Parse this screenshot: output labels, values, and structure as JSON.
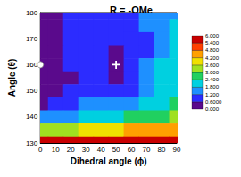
{
  "chart_data": {
    "type": "contour",
    "title": "R = -OMe",
    "x_label": "Dihedral angle (ϕ)",
    "y_label": "Angle (θ)",
    "x": [
      0,
      10,
      20,
      30,
      40,
      50,
      60,
      70,
      80,
      90
    ],
    "y": [
      180,
      175,
      170,
      165,
      160,
      155,
      150,
      145,
      140,
      135,
      130
    ],
    "z": [
      [
        0.3,
        0.4,
        0.9,
        1.0,
        1.0,
        1.1,
        1.0,
        1.3,
        1.5,
        1.7
      ],
      [
        0.3,
        0.4,
        0.9,
        0.8,
        1.0,
        0.9,
        0.9,
        1.2,
        1.5,
        1.8
      ],
      [
        0.2,
        0.3,
        0.8,
        0.7,
        0.7,
        0.8,
        0.9,
        1.1,
        1.6,
        1.9
      ],
      [
        0.1,
        0.2,
        0.7,
        0.7,
        0.6,
        0.5,
        0.8,
        1.1,
        1.7,
        2.0
      ],
      [
        0.0,
        0.2,
        0.6,
        0.7,
        0.6,
        0.3,
        0.7,
        1.2,
        1.8,
        2.1
      ],
      [
        0.1,
        0.2,
        0.5,
        0.8,
        0.8,
        0.5,
        0.9,
        1.3,
        1.9,
        2.2
      ],
      [
        0.2,
        0.3,
        0.6,
        0.9,
        1.0,
        0.9,
        1.1,
        1.5,
        2.0,
        2.3
      ],
      [
        0.5,
        0.6,
        0.9,
        1.2,
        1.3,
        1.3,
        1.5,
        1.8,
        2.2,
        2.4
      ],
      [
        1.3,
        1.4,
        1.6,
        1.9,
        2.2,
        2.3,
        2.4,
        2.6,
        2.9,
        3.0
      ],
      [
        3.2,
        3.3,
        3.5,
        3.7,
        4.0,
        4.1,
        4.2,
        4.4,
        4.6,
        4.7
      ],
      [
        5.5,
        5.6,
        5.7,
        5.8,
        5.9,
        6.0,
        6.0,
        6.0,
        6.0,
        6.0
      ]
    ],
    "xlim": [
      0,
      90
    ],
    "ylim": [
      130,
      180
    ],
    "xticks": [
      0,
      10,
      20,
      30,
      40,
      50,
      60,
      70,
      80,
      90
    ],
    "yticks": [
      130,
      140,
      150,
      160,
      170,
      180
    ],
    "colorbar": {
      "range": [
        0,
        6
      ],
      "ticks": [
        {
          "value": 0,
          "label": "0.000"
        },
        {
          "value": 0.6,
          "label": "0.6000"
        },
        {
          "value": 1.2,
          "label": "1.200"
        },
        {
          "value": 1.8,
          "label": "1.800"
        },
        {
          "value": 2.4,
          "label": "2.400"
        },
        {
          "value": 3.0,
          "label": "3.000"
        },
        {
          "value": 3.6,
          "label": "3.600"
        },
        {
          "value": 4.2,
          "label": "4.200"
        },
        {
          "value": 4.8,
          "label": "4.800"
        },
        {
          "value": 5.4,
          "label": "5.400"
        },
        {
          "value": 6.0,
          "label": "6.000"
        }
      ],
      "colors": [
        "#5a0a8c",
        "#2c2cff",
        "#1e90ff",
        "#00d0e0",
        "#20d060",
        "#a0e020",
        "#f0e000",
        "#ffa000",
        "#ff4000",
        "#c80000"
      ]
    },
    "points": [
      {
        "x": 0,
        "y": 160,
        "marker": "circle",
        "color": "#ffffff"
      },
      {
        "x": 50,
        "y": 160,
        "marker": "plus",
        "color": "#ffffff"
      }
    ]
  }
}
